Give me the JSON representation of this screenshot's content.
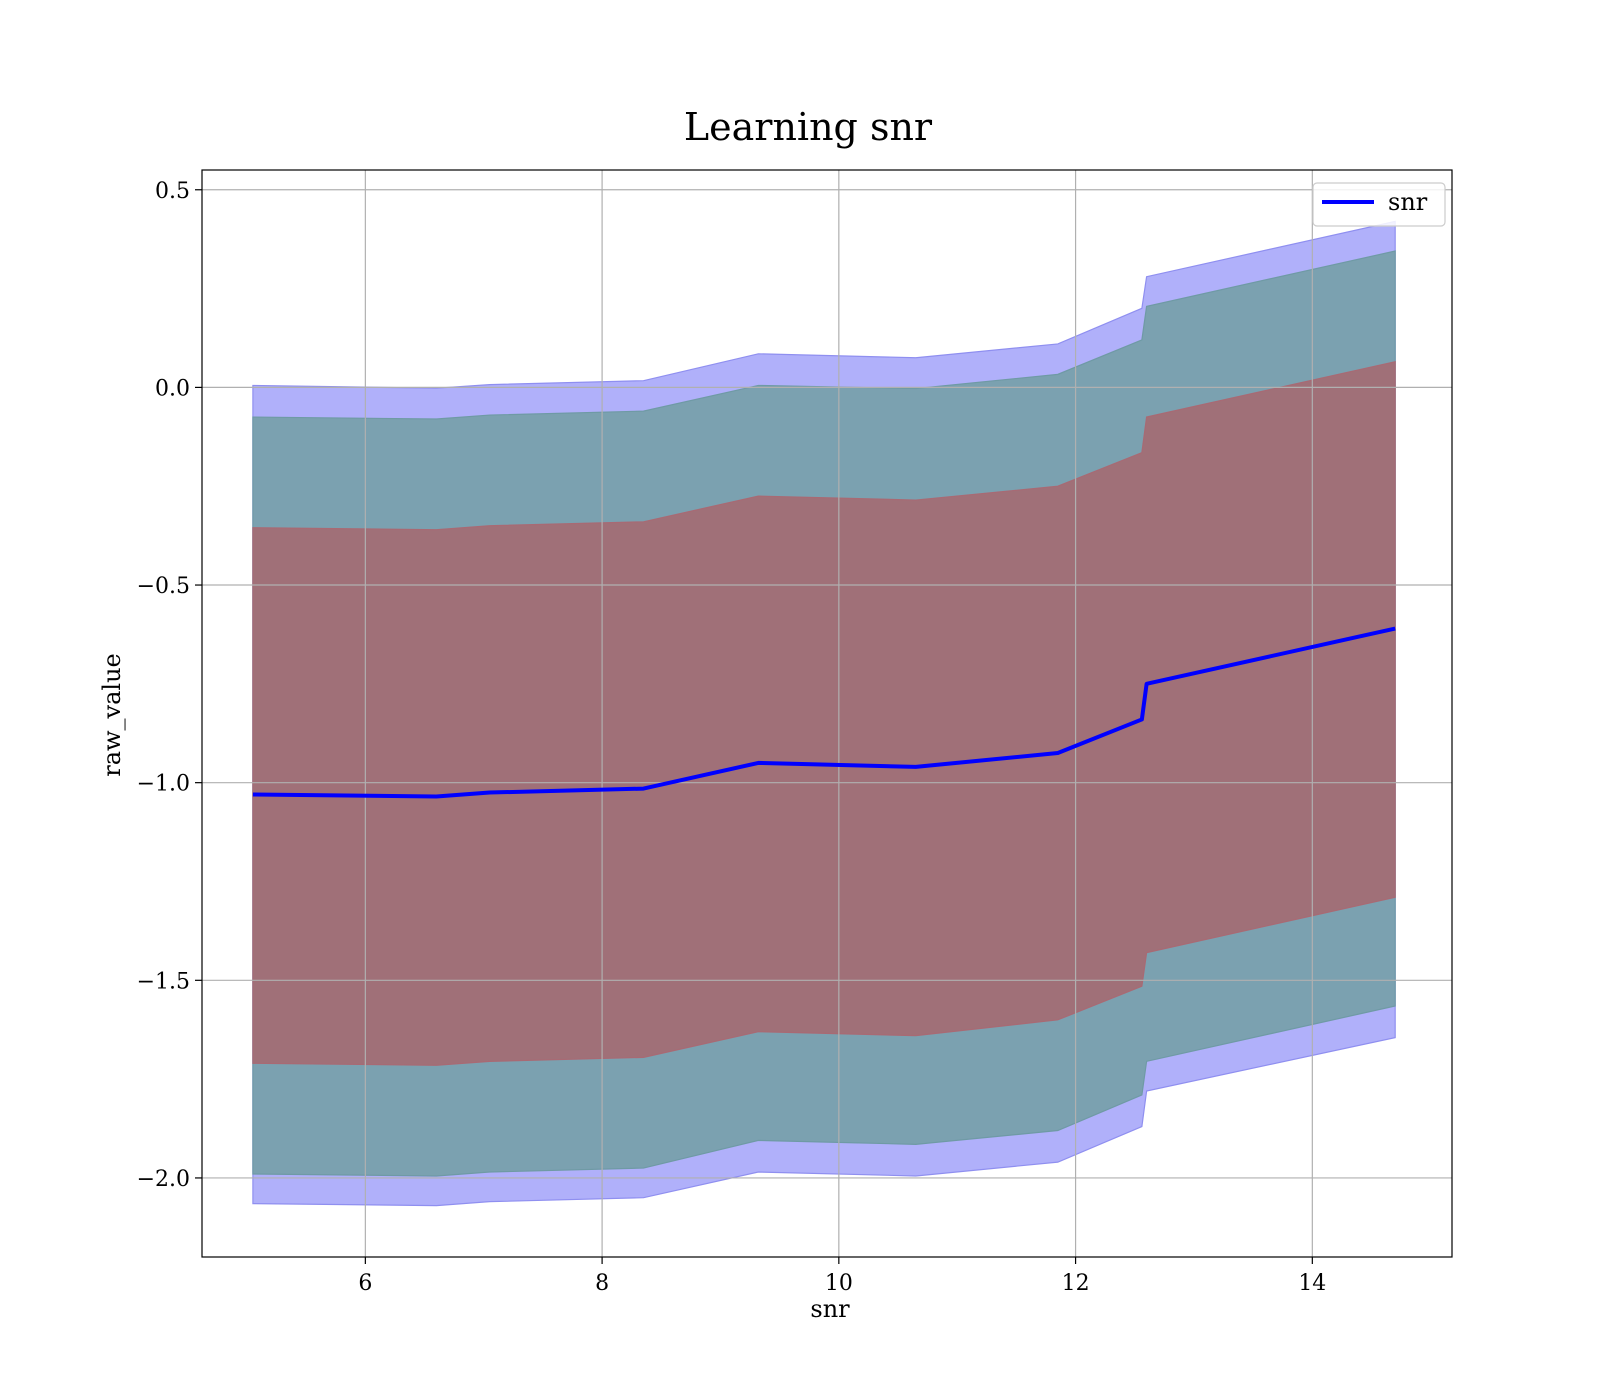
{
  "chart_data": {
    "type": "line",
    "title": "Learning snr",
    "xlabel": "snr",
    "ylabel": "raw_value",
    "xlim": [
      4.62,
      15.18
    ],
    "ylim": [
      -2.2,
      0.55
    ],
    "xticks": [
      6,
      8,
      10,
      12,
      14
    ],
    "xtick_labels": [
      "6",
      "8",
      "10",
      "12",
      "14"
    ],
    "yticks": [
      0.5,
      0.0,
      -0.5,
      -1.0,
      -1.5,
      -2.0
    ],
    "ytick_labels": [
      "0.5",
      "0.0",
      "−0.5",
      "−1.0",
      "−1.5",
      "−2.0"
    ],
    "grid": true,
    "legend": {
      "position": "top-right",
      "entries": [
        "snr"
      ]
    },
    "colors": {
      "line": "#0000ff",
      "outer_band": "#b0b0fa",
      "middle_band": "#7ba1b0",
      "inner_band": "#a07078",
      "grid": "#b0b0b0"
    },
    "x": [
      5.05,
      6.6,
      7.05,
      8.35,
      9.32,
      10.65,
      11.85,
      12.56,
      12.6,
      14.7
    ],
    "series": [
      {
        "name": "snr",
        "values": [
          -1.03,
          -1.035,
          -1.025,
          -1.015,
          -0.95,
          -0.96,
          -0.925,
          -0.84,
          -0.75,
          -0.61
        ]
      }
    ],
    "bands": [
      {
        "lower": [
          -2.065,
          -2.07,
          -2.06,
          -2.05,
          -1.985,
          -1.995,
          -1.96,
          -1.87,
          -1.78,
          -1.645
        ],
        "upper": [
          0.005,
          -0.002,
          0.007,
          0.017,
          0.085,
          0.075,
          0.11,
          0.2,
          0.28,
          0.42
        ]
      },
      {
        "lower": [
          -1.99,
          -1.995,
          -1.985,
          -1.975,
          -1.905,
          -1.915,
          -1.88,
          -1.79,
          -1.705,
          -1.565
        ],
        "upper": [
          -0.075,
          -0.08,
          -0.07,
          -0.06,
          0.005,
          -0.003,
          0.033,
          0.12,
          0.205,
          0.345
        ]
      },
      {
        "lower": [
          -1.71,
          -1.715,
          -1.705,
          -1.695,
          -1.63,
          -1.64,
          -1.6,
          -1.515,
          -1.43,
          -1.29
        ],
        "upper": [
          -0.355,
          -0.36,
          -0.35,
          -0.34,
          -0.275,
          -0.285,
          -0.25,
          -0.165,
          -0.075,
          0.065
        ]
      }
    ]
  }
}
